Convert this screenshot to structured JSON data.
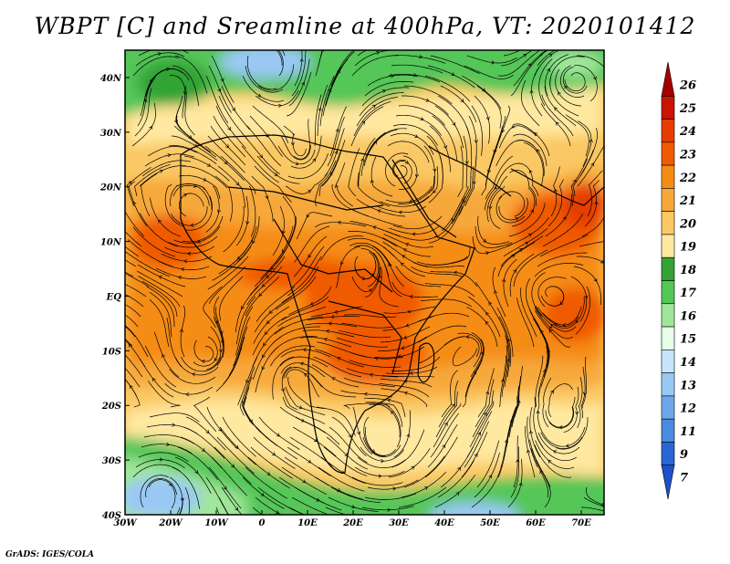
{
  "title": "WBPT [C] and Sreamline at 400hPa, VT: 2020101412",
  "credit": "GrADS: IGES/COLA",
  "map": {
    "lon_range": [
      -30,
      75
    ],
    "lat_range": [
      -40,
      45
    ],
    "lon_ticks": [
      "30W",
      "20W",
      "10W",
      "0",
      "10E",
      "20E",
      "30E",
      "40E",
      "50E",
      "60E",
      "70E"
    ],
    "lat_ticks": [
      "40N",
      "30N",
      "20N",
      "10N",
      "EQ",
      "10S",
      "20S",
      "30S",
      "40S"
    ]
  },
  "colorbar": {
    "labels": [
      "26",
      "25",
      "24",
      "23",
      "22",
      "21",
      "20",
      "19",
      "18",
      "17",
      "16",
      "15",
      "14",
      "13",
      "12",
      "11",
      "9",
      "7"
    ],
    "colors": [
      "#a50000",
      "#c81400",
      "#e63c00",
      "#f05a00",
      "#f58c14",
      "#f7a83a",
      "#fac864",
      "#ffe8a0",
      "#33a335",
      "#55c658",
      "#a0e69a",
      "#e6ffe6",
      "#c6e6ff",
      "#9ac8f5",
      "#6ea8ea",
      "#4a8ae0",
      "#2a66d8",
      "#1e50c8"
    ]
  }
}
